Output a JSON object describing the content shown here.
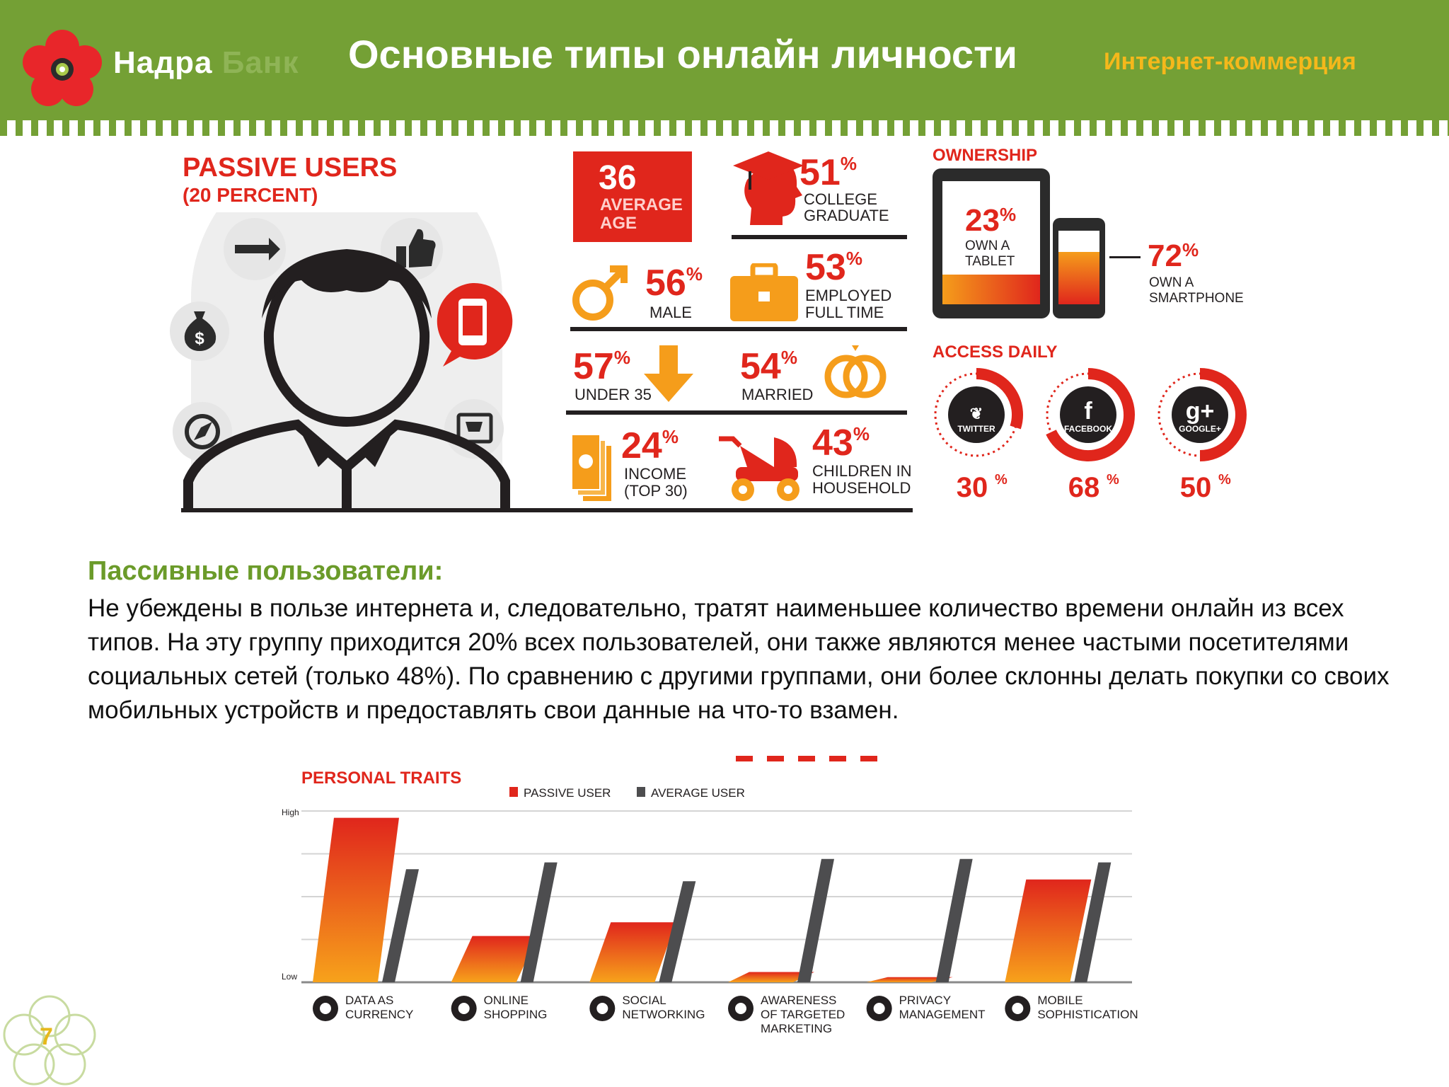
{
  "header": {
    "bank_name": "Надра",
    "bank_name_faded": "Банк",
    "title": "Основные типы онлайн личности",
    "section": "Интернет-коммерция"
  },
  "infographic": {
    "title": "PASSIVE USERS",
    "subtitle": "(20 PERCENT)",
    "avg_age": {
      "value": "36",
      "label_1": "AVERAGE",
      "label_2": "AGE"
    },
    "stats": [
      {
        "value": "51",
        "unit": "%",
        "label_1": "COLLEGE",
        "label_2": "GRADUATE"
      },
      {
        "value": "56",
        "unit": "%",
        "label_1": "MALE",
        "label_2": ""
      },
      {
        "value": "53",
        "unit": "%",
        "label_1": "EMPLOYED",
        "label_2": "FULL TIME"
      },
      {
        "value": "57",
        "unit": "%",
        "label_1": "UNDER 35",
        "label_2": ""
      },
      {
        "value": "54",
        "unit": "%",
        "label_1": "MARRIED",
        "label_2": ""
      },
      {
        "value": "24",
        "unit": "%",
        "label_1": "INCOME",
        "label_2": "(TOP 30)"
      },
      {
        "value": "43",
        "unit": "%",
        "label_1": "CHILDREN IN",
        "label_2": "HOUSEHOLD"
      }
    ],
    "ownership": {
      "title": "OWNERSHIP",
      "tablet": {
        "value": "23",
        "unit": "%",
        "label_1": "OWN A",
        "label_2": "TABLET"
      },
      "smartphone": {
        "value": "72",
        "unit": "%",
        "label_1": "OWN A",
        "label_2": "SMARTPHONE"
      }
    },
    "access": {
      "title": "ACCESS DAILY",
      "items": [
        {
          "name": "TWITTER",
          "value": "30",
          "unit": "%",
          "fraction": 0.3
        },
        {
          "name": "FACEBOOK",
          "value": "68",
          "unit": "%",
          "fraction": 0.68
        },
        {
          "name": "GOOGLE+",
          "value": "50",
          "unit": "%",
          "fraction": 0.5
        }
      ]
    }
  },
  "body": {
    "heading": "Пассивные пользователи:",
    "text": "Не убеждены  в пользе интернета и, следовательно, тратят наименьшее количество времени онлайн из всех типов. На эту группу приходится 20% всех пользователей, они также являются менее частыми посетителями социальных сетей (только 48%). По сравнению с другими группами, они более склонны делать покупки со своих мобильных устройств и предоставлять свои данные на что-то взамен."
  },
  "chart_data": {
    "type": "bar",
    "title": "PERSONAL TRAITS",
    "ylabel_high": "High",
    "ylabel_low": "Low",
    "ylim": [
      0,
      100
    ],
    "grid": true,
    "legend_position": "top",
    "categories": [
      {
        "line1": "DATA AS",
        "line2": "CURRENCY",
        "line3": ""
      },
      {
        "line1": "ONLINE",
        "line2": "SHOPPING",
        "line3": ""
      },
      {
        "line1": "SOCIAL",
        "line2": "NETWORKING",
        "line3": ""
      },
      {
        "line1": "AWARENESS",
        "line2": "OF TARGETED",
        "line3": "MARKETING"
      },
      {
        "line1": "PRIVACY",
        "line2": "MANAGEMENT",
        "line3": ""
      },
      {
        "line1": "MOBILE",
        "line2": "SOPHISTICATION",
        "line3": ""
      }
    ],
    "series": [
      {
        "name": "PASSIVE USER",
        "color": "#ef5a17",
        "values": [
          96,
          27,
          35,
          6,
          3,
          60
        ]
      },
      {
        "name": "AVERAGE USER",
        "color": "#4d4d4f",
        "values": [
          66,
          70,
          59,
          72,
          72,
          70
        ]
      }
    ]
  },
  "footer": {
    "page": "7"
  },
  "colors": {
    "header_green": "#74a035",
    "accent_red": "#e0261c",
    "orange": "#f59d1b",
    "gold": "#f5b81b"
  }
}
